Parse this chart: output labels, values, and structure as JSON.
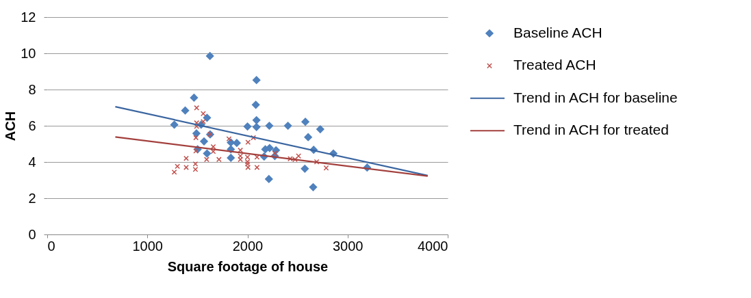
{
  "chart_data": {
    "type": "scatter",
    "xlabel": "Square footage of house",
    "ylabel": "ACH",
    "xlim": [
      0,
      4000
    ],
    "xticks": [
      0,
      1000,
      2000,
      3000,
      4000
    ],
    "ylim": [
      0,
      12
    ],
    "yticks": [
      0,
      2,
      4,
      6,
      8,
      10,
      12
    ],
    "grid": "y",
    "legend": "right",
    "series": [
      {
        "name": "Baseline ACH",
        "marker": "diamond",
        "color": "#4f81bd",
        "x": [
          1269,
          1378,
          1466,
          1625,
          1596,
          1537,
          1490,
          1627,
          1566,
          1502,
          1596,
          1834,
          1893,
          1834,
          1834,
          2000,
          2090,
          2090,
          2083,
          2090,
          2218,
          2404,
          2178,
          2221,
          2285,
          2166,
          2273,
          2214,
          2578,
          2573,
          2727,
          2606,
          2661,
          2858,
          2656,
          3195
        ],
        "values": [
          6.06,
          6.84,
          7.55,
          9.85,
          6.44,
          6.06,
          5.58,
          5.52,
          5.14,
          4.7,
          4.47,
          5.08,
          5.05,
          4.7,
          4.23,
          5.96,
          5.93,
          6.31,
          7.16,
          8.52,
          6.0,
          6.0,
          4.7,
          4.77,
          4.65,
          4.3,
          4.33,
          3.06,
          6.22,
          3.63,
          5.81,
          5.37,
          4.67,
          4.47,
          2.61,
          3.69
        ]
      },
      {
        "name": "Treated ACH",
        "marker": "cross",
        "color": "#c0504d",
        "x": [
          1269,
          1300,
          1388,
          1388,
          1480,
          1480,
          1492,
          1558,
          1492,
          1558,
          1492,
          1485,
          1485,
          1627,
          1658,
          1658,
          1592,
          1715,
          1815,
          1929,
          1929,
          1929,
          2000,
          2000,
          2000,
          2005,
          2005,
          2059,
          2095,
          2095,
          2273,
          2427,
          2475,
          2510,
          2691,
          2786
        ],
        "values": [
          3.44,
          3.76,
          4.2,
          3.7,
          3.89,
          3.59,
          6.99,
          6.67,
          6.16,
          6.23,
          5.97,
          5.34,
          4.61,
          5.53,
          4.84,
          4.58,
          4.14,
          4.14,
          5.28,
          4.65,
          4.33,
          4.14,
          4.27,
          4.01,
          3.89,
          3.7,
          5.09,
          5.34,
          4.27,
          3.7,
          4.48,
          4.18,
          4.14,
          4.33,
          4.01,
          3.67
        ]
      },
      {
        "name": "Trend in ACH for baseline",
        "type": "line",
        "line_style": "solid",
        "color": "#3a65a0",
        "x": [
          680,
          3800
        ],
        "values": [
          7.05,
          3.25
        ]
      },
      {
        "name": "Trend in ACH for treated",
        "type": "line",
        "line_style": "solid",
        "color": "#a33f3c",
        "x": [
          680,
          3800
        ],
        "values": [
          5.38,
          3.22
        ]
      }
    ]
  }
}
